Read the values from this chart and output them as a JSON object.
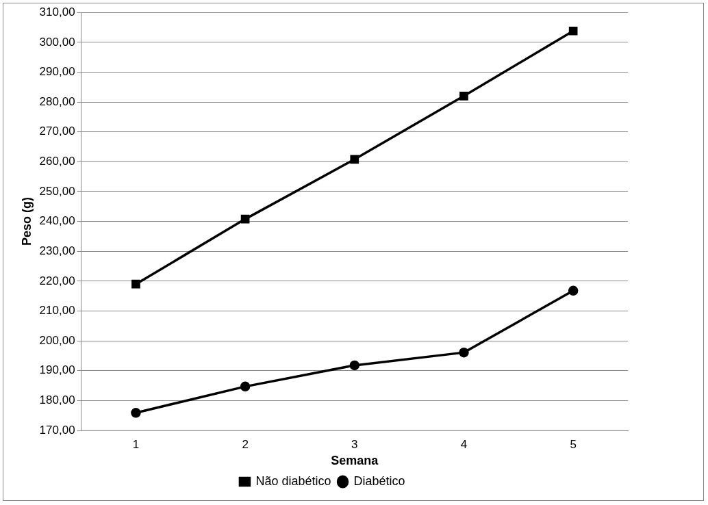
{
  "chart_data": {
    "type": "line",
    "xlabel": "Semana",
    "ylabel": "Peso (g)",
    "categories": [
      "1",
      "2",
      "3",
      "4",
      "5"
    ],
    "series": [
      {
        "name": "Não diabético",
        "color": "#000000",
        "marker": "square",
        "values": [
          219,
          240.8,
          260.8,
          282,
          303.8
        ]
      },
      {
        "name": "Diabético",
        "color": "#000000",
        "marker": "circle",
        "values": [
          175.9,
          184.7,
          191.8,
          196.1,
          216.8
        ]
      }
    ],
    "ylim": [
      170,
      310
    ],
    "yticks": [
      {
        "value": 170,
        "label": "170,00"
      },
      {
        "value": 180,
        "label": "180,00"
      },
      {
        "value": 190,
        "label": "190,00"
      },
      {
        "value": 200,
        "label": "200,00"
      },
      {
        "value": 210,
        "label": "210,00"
      },
      {
        "value": 220,
        "label": "220,00"
      },
      {
        "value": 230,
        "label": "230,00"
      },
      {
        "value": 240,
        "label": "240,00"
      },
      {
        "value": 250,
        "label": "250,00"
      },
      {
        "value": 260,
        "label": "260,00"
      },
      {
        "value": 270,
        "label": "270,00"
      },
      {
        "value": 280,
        "label": "280,00"
      },
      {
        "value": 290,
        "label": "290,00"
      },
      {
        "value": 300,
        "label": "300,00"
      },
      {
        "value": 310,
        "label": "310,00"
      }
    ],
    "grid": "y",
    "legend": "bottom",
    "line_style": "solid"
  }
}
